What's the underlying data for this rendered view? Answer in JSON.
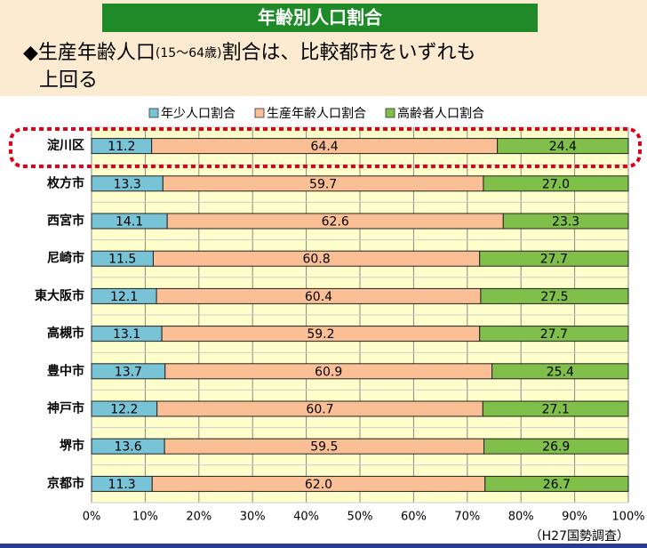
{
  "chart_data": {
    "type": "stacked-bar-horizontal",
    "title": "年齢別人口割合",
    "subtitle": {
      "line1": [
        "◆生産年齢人口",
        "(15～64歳)",
        "割合は、比較都市をいずれも"
      ],
      "line2": "上回る"
    },
    "source": "（H27国勢調査）",
    "categories": [
      "淀川区",
      "枚方市",
      "西宮市",
      "尼崎市",
      "東大阪市",
      "高槻市",
      "豊中市",
      "神戸市",
      "堺市",
      "京都市"
    ],
    "series": [
      {
        "name": "年少人口割合",
        "color": "#79c3d6",
        "values": [
          11.2,
          13.3,
          14.1,
          11.5,
          12.1,
          13.1,
          13.7,
          12.2,
          13.6,
          11.3
        ],
        "value_labels": [
          "11.2",
          "13.3",
          "14.1",
          "11.5",
          "12.1",
          "13.1",
          "13.7",
          "12.2",
          "13.6",
          "11.3"
        ]
      },
      {
        "name": "生産年齢人口割合",
        "color": "#fbbf96",
        "values": [
          64.4,
          59.7,
          62.6,
          60.8,
          60.4,
          59.2,
          60.9,
          60.7,
          59.5,
          62.0
        ],
        "value_labels": [
          "64.4",
          "59.7",
          "62.6",
          "60.8",
          "60.4",
          "59.2",
          "60.9",
          "60.7",
          "59.5",
          "62.0"
        ]
      },
      {
        "name": "高齢者人口割合",
        "color": "#7fbf4a",
        "values": [
          24.4,
          27.0,
          23.3,
          27.7,
          27.5,
          27.7,
          25.4,
          27.1,
          26.9,
          26.7
        ],
        "value_labels": [
          "24.4",
          "27.0",
          "23.3",
          "27.7",
          "27.5",
          "27.7",
          "25.4",
          "27.1",
          "26.9",
          "26.7"
        ]
      }
    ],
    "xlim": [
      0,
      100
    ],
    "xticks": [
      {
        "value": 0,
        "label": "0%"
      },
      {
        "value": 10,
        "label": "10%"
      },
      {
        "value": 20,
        "label": "20%"
      },
      {
        "value": 30,
        "label": "30%"
      },
      {
        "value": 40,
        "label": "40%"
      },
      {
        "value": 50,
        "label": "50%"
      },
      {
        "value": 60,
        "label": "60%"
      },
      {
        "value": 70,
        "label": "70%"
      },
      {
        "value": 80,
        "label": "80%"
      },
      {
        "value": 90,
        "label": "90%"
      },
      {
        "value": 100,
        "label": "100%"
      }
    ],
    "grid": true
  }
}
